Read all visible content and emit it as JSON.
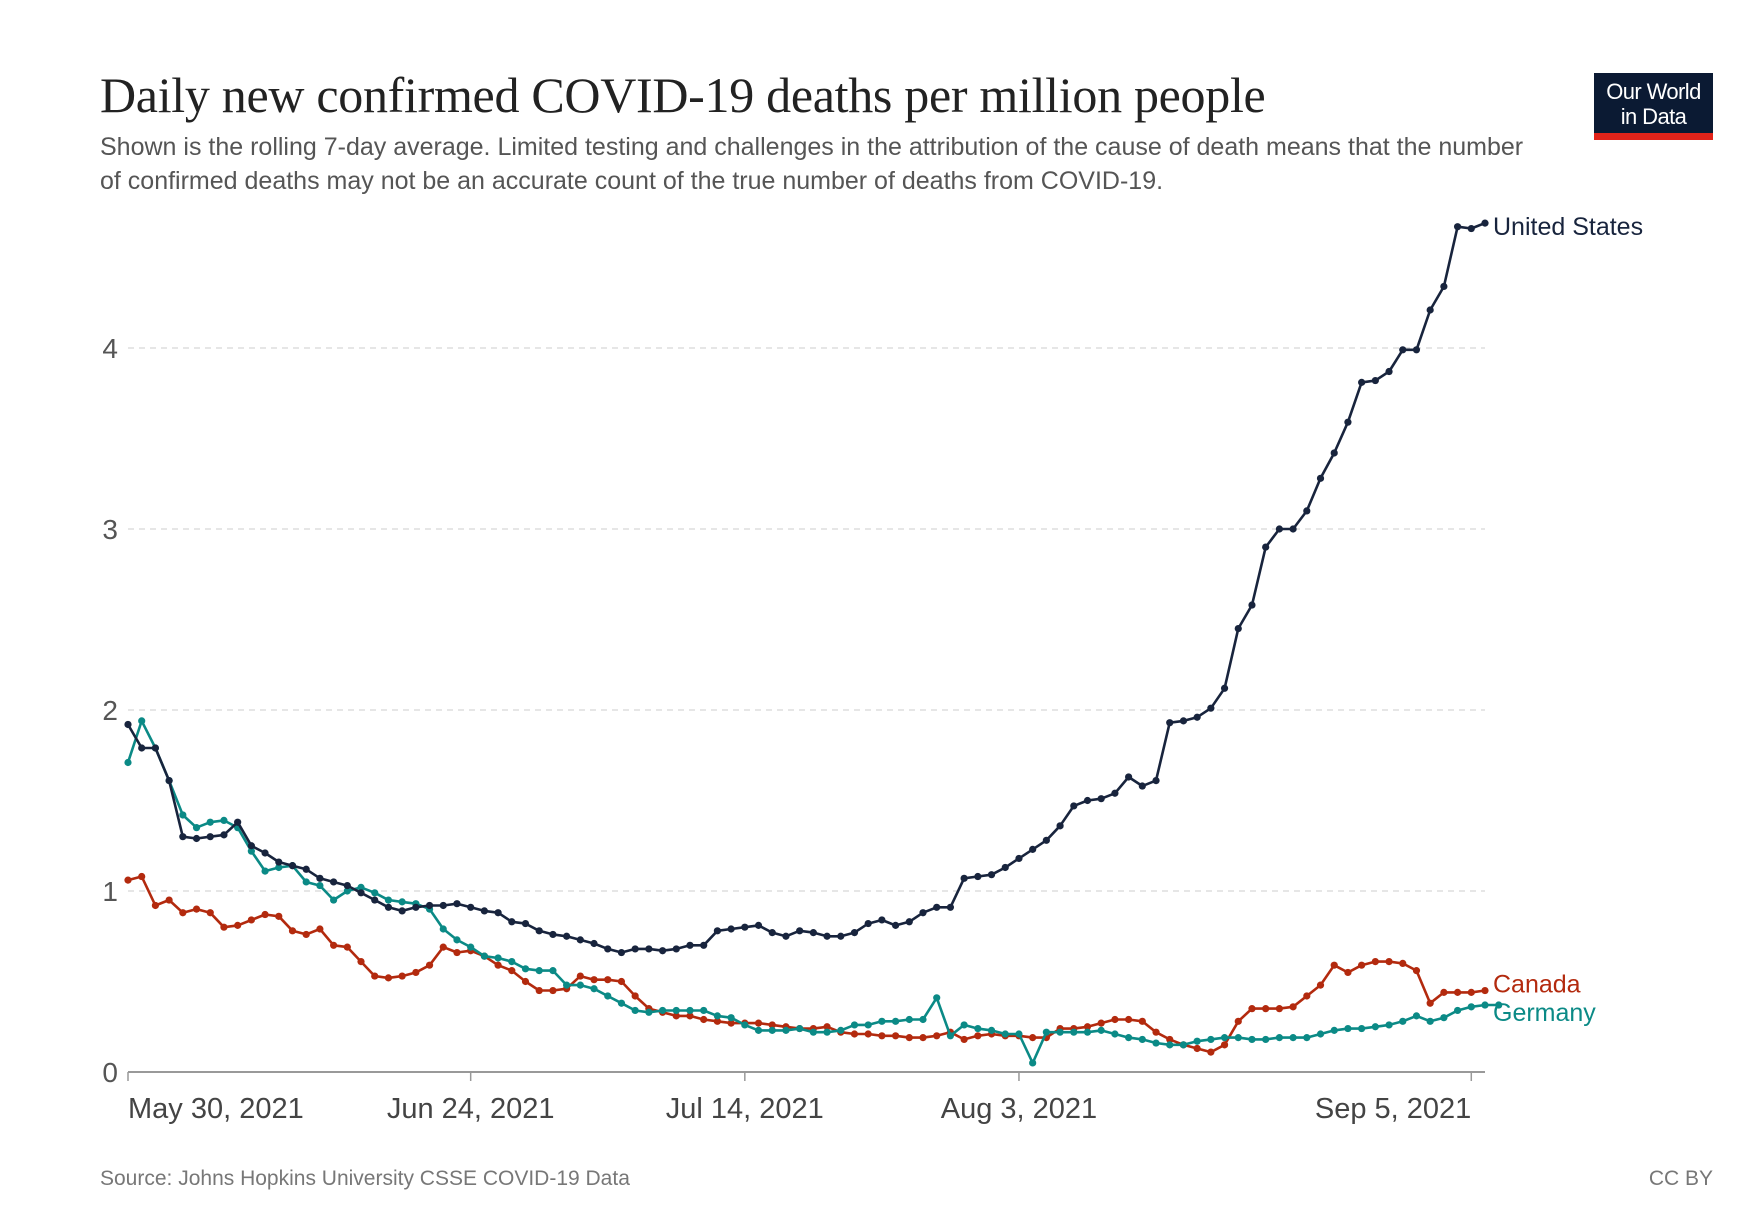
{
  "logo": {
    "line1": "Our World",
    "line2": "in Data"
  },
  "footer": {
    "source": "Source: Johns Hopkins University CSSE COVID-19 Data",
    "license": "CC BY"
  },
  "colors": {
    "united_states": "#18243d",
    "canada": "#b32a0e",
    "germany": "#0b8a86",
    "grid": "#dddddd",
    "axis": "#999999",
    "text": "#555555"
  },
  "chart_data": {
    "type": "line",
    "title": "Daily new confirmed COVID-19 deaths per million people",
    "subtitle": "Shown is the rolling 7-day average. Limited testing and challenges in the attribution of the cause of death means that the number of confirmed deaths may not be an accurate count of the true number of deaths from COVID-19.",
    "xlabel": "",
    "ylabel": "",
    "x_start": "2021-05-30",
    "x_end": "2021-09-05",
    "x_tick_labels": [
      {
        "label": "May 30, 2021",
        "day": 0
      },
      {
        "label": "Jun 24, 2021",
        "day": 25
      },
      {
        "label": "Jul 14, 2021",
        "day": 45
      },
      {
        "label": "Aug 3, 2021",
        "day": 65
      },
      {
        "label": "Sep 5, 2021",
        "day": 98
      }
    ],
    "ylim": [
      0,
      4.6
    ],
    "y_ticks": [
      0,
      1,
      2,
      3,
      4
    ],
    "grid": true,
    "legend": "right (line-end labels)",
    "series": [
      {
        "name": "United States",
        "color_key": "united_states",
        "values": [
          1.92,
          1.79,
          1.79,
          1.61,
          1.3,
          1.29,
          1.3,
          1.31,
          1.38,
          1.25,
          1.21,
          1.16,
          1.14,
          1.12,
          1.07,
          1.05,
          1.03,
          0.99,
          0.95,
          0.91,
          0.89,
          0.91,
          0.92,
          0.92,
          0.93,
          0.91,
          0.89,
          0.88,
          0.83,
          0.82,
          0.78,
          0.76,
          0.75,
          0.73,
          0.71,
          0.68,
          0.66,
          0.68,
          0.68,
          0.67,
          0.68,
          0.7,
          0.7,
          0.78,
          0.79,
          0.8,
          0.81,
          0.77,
          0.75,
          0.78,
          0.77,
          0.75,
          0.75,
          0.77,
          0.82,
          0.84,
          0.81,
          0.83,
          0.88,
          0.91,
          0.91,
          1.07,
          1.08,
          1.09,
          1.13,
          1.18,
          1.23,
          1.28,
          1.36,
          1.47,
          1.5,
          1.51,
          1.54,
          1.63,
          1.58,
          1.61,
          1.93,
          1.94,
          1.96,
          2.01,
          2.12,
          2.45,
          2.58,
          2.9,
          3.0,
          3.0,
          3.1,
          3.28,
          3.42,
          3.59,
          3.81,
          3.82,
          3.87,
          3.99,
          3.99,
          4.21,
          4.34,
          4.67,
          4.66,
          4.69
        ]
      },
      {
        "name": "Canada",
        "color_key": "canada",
        "values": [
          1.06,
          1.08,
          0.92,
          0.95,
          0.88,
          0.9,
          0.88,
          0.8,
          0.81,
          0.84,
          0.87,
          0.86,
          0.78,
          0.76,
          0.79,
          0.7,
          0.69,
          0.61,
          0.53,
          0.52,
          0.53,
          0.55,
          0.59,
          0.69,
          0.66,
          0.67,
          0.64,
          0.59,
          0.56,
          0.5,
          0.45,
          0.45,
          0.46,
          0.53,
          0.51,
          0.51,
          0.5,
          0.42,
          0.35,
          0.33,
          0.31,
          0.31,
          0.29,
          0.28,
          0.27,
          0.27,
          0.27,
          0.26,
          0.25,
          0.24,
          0.24,
          0.25,
          0.22,
          0.21,
          0.21,
          0.2,
          0.2,
          0.19,
          0.19,
          0.2,
          0.22,
          0.18,
          0.2,
          0.21,
          0.2,
          0.2,
          0.19,
          0.19,
          0.24,
          0.24,
          0.25,
          0.27,
          0.29,
          0.29,
          0.28,
          0.22,
          0.18,
          0.15,
          0.13,
          0.11,
          0.15,
          0.28,
          0.35,
          0.35,
          0.35,
          0.36,
          0.42,
          0.48,
          0.59,
          0.55,
          0.59,
          0.61,
          0.61,
          0.6,
          0.56,
          0.38,
          0.44,
          0.44,
          0.44,
          0.45
        ]
      },
      {
        "name": "Germany",
        "color_key": "germany",
        "values": [
          1.71,
          1.94,
          1.79,
          1.61,
          1.42,
          1.35,
          1.38,
          1.39,
          1.35,
          1.22,
          1.11,
          1.13,
          1.14,
          1.05,
          1.03,
          0.95,
          1.0,
          1.02,
          0.99,
          0.95,
          0.94,
          0.93,
          0.9,
          0.79,
          0.73,
          0.69,
          0.64,
          0.63,
          0.61,
          0.57,
          0.56,
          0.56,
          0.48,
          0.48,
          0.46,
          0.42,
          0.38,
          0.34,
          0.33,
          0.34,
          0.34,
          0.34,
          0.34,
          0.31,
          0.3,
          0.26,
          0.23,
          0.23,
          0.23,
          0.24,
          0.22,
          0.22,
          0.23,
          0.26,
          0.26,
          0.28,
          0.28,
          0.29,
          0.29,
          0.41,
          0.2,
          0.26,
          0.24,
          0.23,
          0.21,
          0.21,
          0.05,
          0.22,
          0.22,
          0.22,
          0.22,
          0.23,
          0.21,
          0.19,
          0.18,
          0.16,
          0.15,
          0.15,
          0.17,
          0.18,
          0.19,
          0.19,
          0.18,
          0.18,
          0.19,
          0.19,
          0.19,
          0.21,
          0.23,
          0.24,
          0.24,
          0.25,
          0.26,
          0.28,
          0.31,
          0.28,
          0.3,
          0.34,
          0.36,
          0.37,
          0.37
        ]
      }
    ]
  }
}
